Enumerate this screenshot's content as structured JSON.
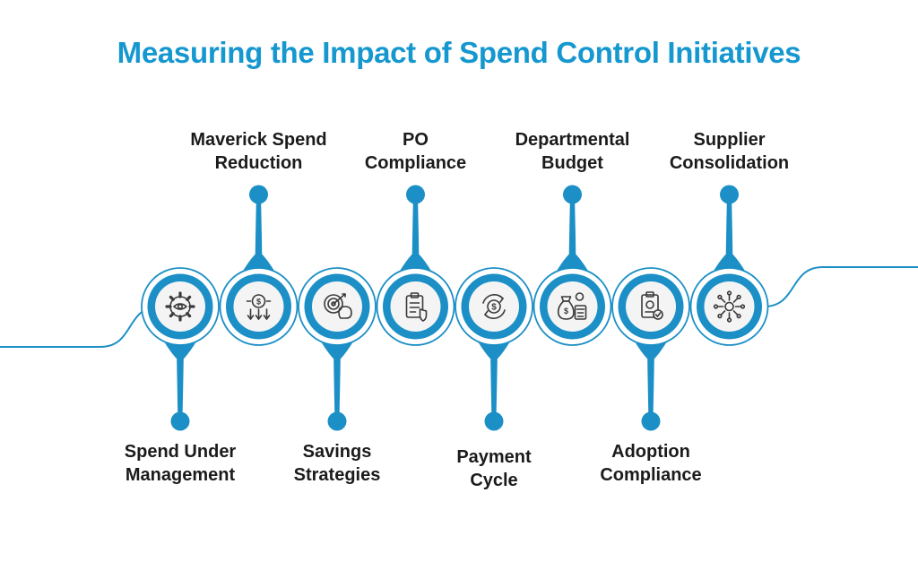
{
  "title": "Measuring the Impact of Spend Control Initiatives",
  "colors": {
    "accent": "#1b8fc6",
    "title": "#1597cf",
    "text": "#1b1b1b"
  },
  "items": [
    {
      "label_lines": [
        "Spend Under",
        "Management"
      ],
      "icon": "gear-eye-icon",
      "position": "bottom"
    },
    {
      "label_lines": [
        "Maverick Spend",
        "Reduction"
      ],
      "icon": "coin-down-arrows-icon",
      "position": "top"
    },
    {
      "label_lines": [
        "Savings",
        "Strategies"
      ],
      "icon": "target-piggy-bank-icon",
      "position": "bottom"
    },
    {
      "label_lines": [
        "PO",
        "Compliance"
      ],
      "icon": "clipboard-shield-icon",
      "position": "top"
    },
    {
      "label_lines": [
        "Payment",
        "Cycle"
      ],
      "icon": "cycle-dollar-icon",
      "position": "bottom"
    },
    {
      "label_lines": [
        "Departmental",
        "Budget"
      ],
      "icon": "money-bag-calculator-icon",
      "position": "top"
    },
    {
      "label_lines": [
        "Adoption",
        "Compliance"
      ],
      "icon": "document-check-icon",
      "position": "bottom"
    },
    {
      "label_lines": [
        "Supplier",
        "Consolidation"
      ],
      "icon": "network-hub-icon",
      "position": "top"
    }
  ]
}
